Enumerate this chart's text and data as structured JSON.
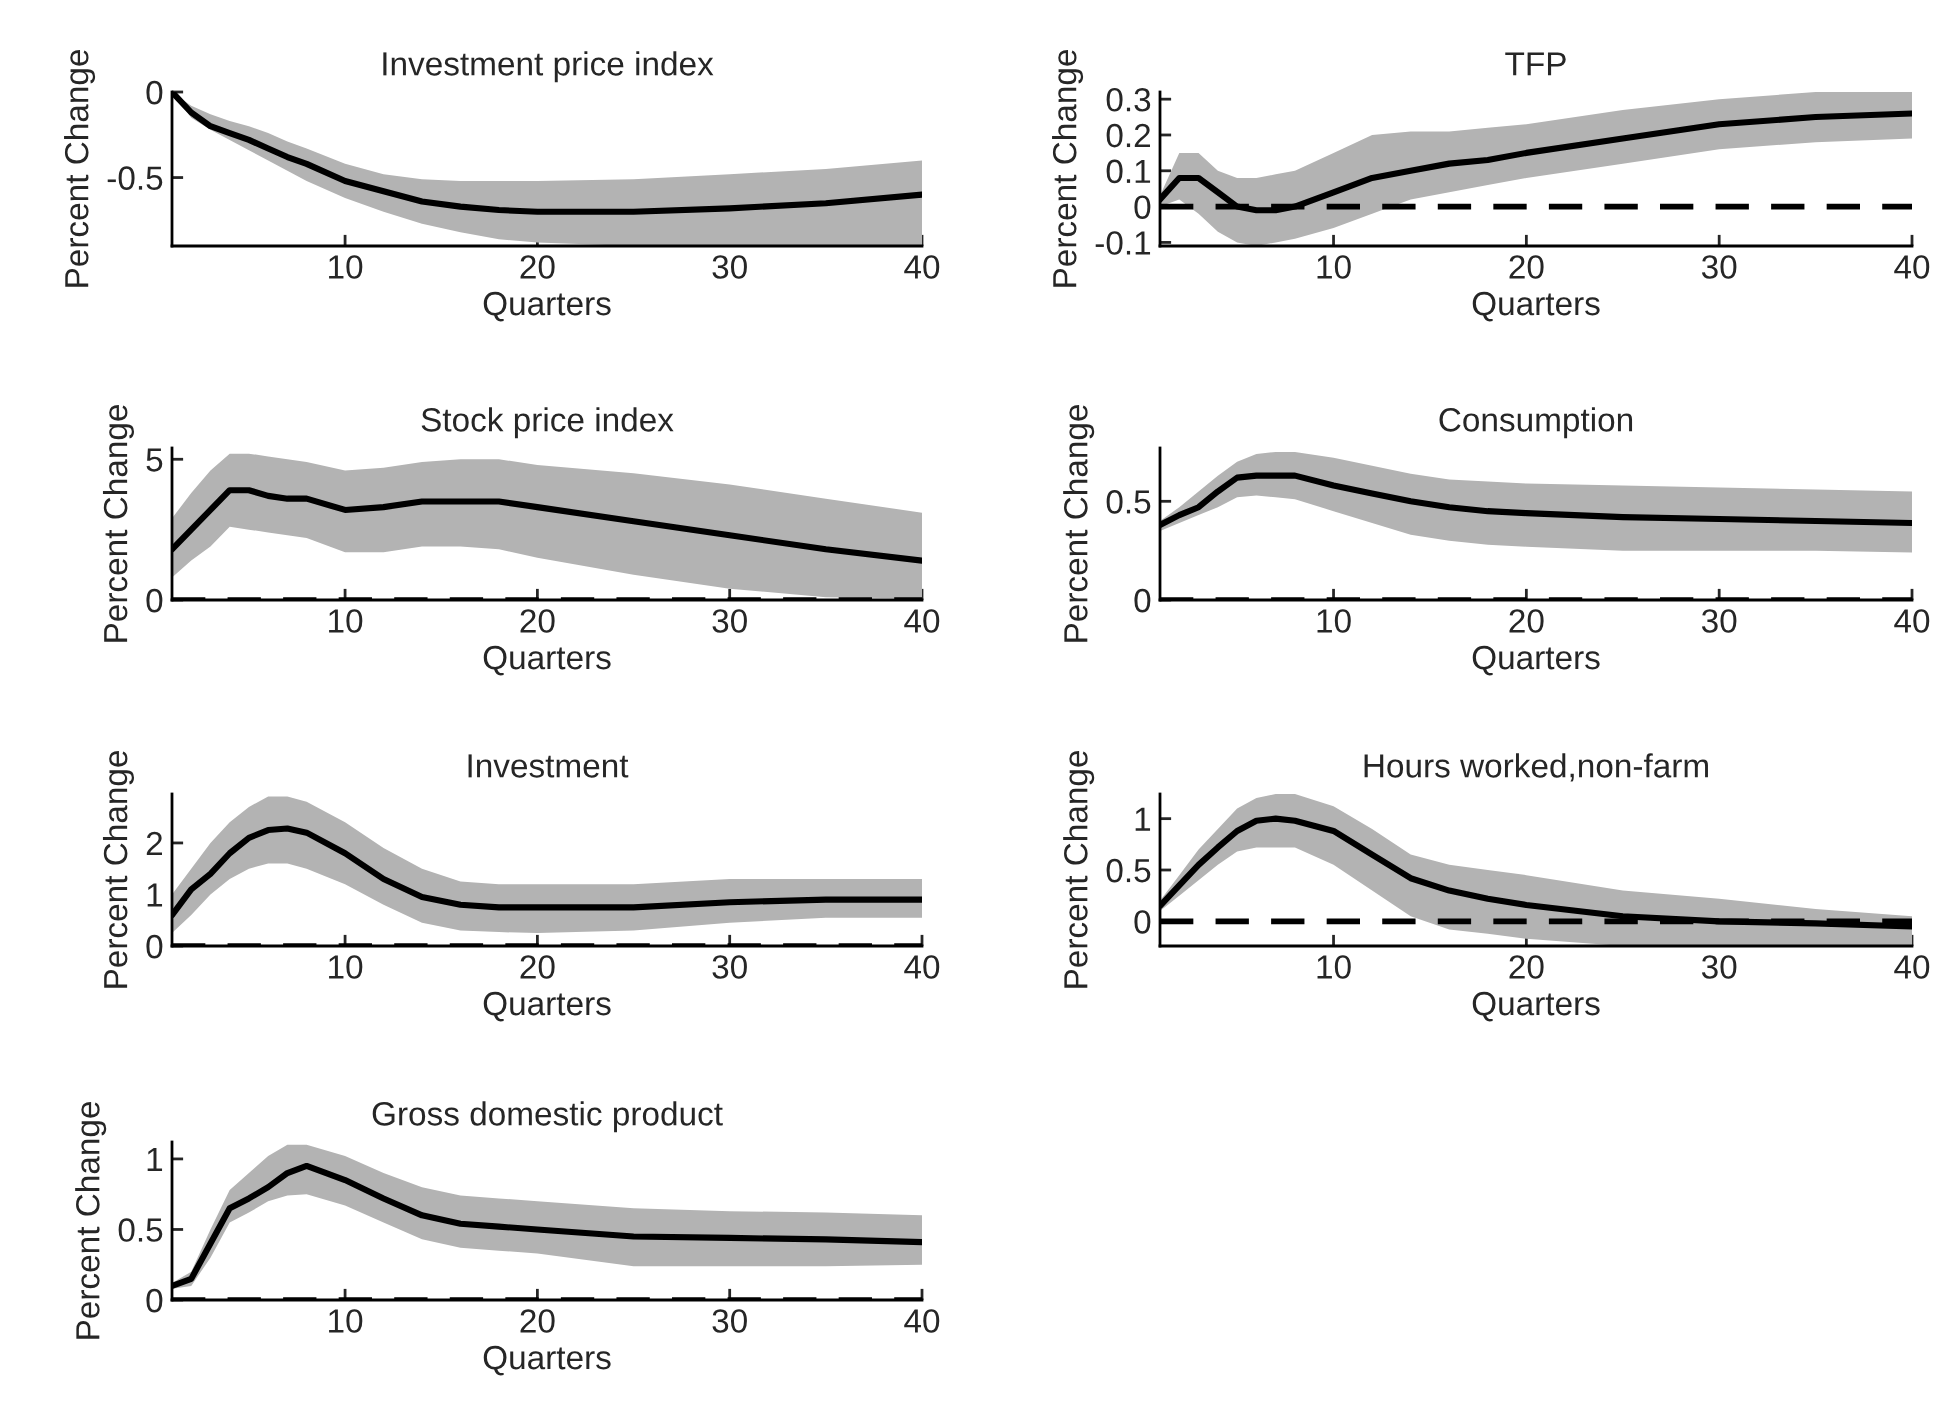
{
  "chart_data": [
    {
      "type": "line",
      "title": "Investment price index",
      "xlabel": "Quarters",
      "ylabel": "Percent Change",
      "xlim": [
        1,
        40
      ],
      "xticks": [
        10,
        20,
        30,
        40
      ],
      "ylim": [
        -0.9,
        0
      ],
      "yticks": [
        -0.5,
        0
      ],
      "series": [
        {
          "color": "#000000",
          "x": [
            1,
            2,
            3,
            4,
            5,
            6,
            7,
            8,
            10,
            12,
            14,
            16,
            18,
            20,
            25,
            30,
            35,
            40
          ],
          "values": [
            0,
            -0.12,
            -0.2,
            -0.24,
            -0.28,
            -0.33,
            -0.38,
            -0.42,
            -0.52,
            -0.58,
            -0.64,
            -0.67,
            -0.69,
            -0.7,
            -0.7,
            -0.68,
            -0.65,
            -0.6
          ],
          "upper": [
            0,
            -0.08,
            -0.13,
            -0.17,
            -0.2,
            -0.24,
            -0.29,
            -0.33,
            -0.42,
            -0.48,
            -0.51,
            -0.52,
            -0.52,
            -0.52,
            -0.51,
            -0.48,
            -0.45,
            -0.4
          ],
          "lower": [
            0,
            -0.15,
            -0.22,
            -0.28,
            -0.34,
            -0.4,
            -0.46,
            -0.52,
            -0.62,
            -0.7,
            -0.77,
            -0.82,
            -0.86,
            -0.88,
            -0.9,
            -0.9,
            -0.9,
            -0.9
          ]
        }
      ]
    },
    {
      "type": "line",
      "title": "TFP",
      "xlabel": "Quarters",
      "ylabel": "Percent Change",
      "xlim": [
        1,
        40
      ],
      "xticks": [
        10,
        20,
        30,
        40
      ],
      "ylim": [
        -0.11,
        0.32
      ],
      "yticks": [
        -0.1,
        0,
        0.1,
        0.2,
        0.3
      ],
      "ref_lines": [
        {
          "axis": "y",
          "value": 0,
          "color": "#000000",
          "line_style": "dashed"
        }
      ],
      "series": [
        {
          "color": "#000000",
          "x": [
            1,
            2,
            3,
            4,
            5,
            6,
            7,
            8,
            10,
            12,
            14,
            16,
            18,
            20,
            25,
            30,
            35,
            40
          ],
          "values": [
            0.02,
            0.08,
            0.08,
            0.04,
            0.0,
            -0.01,
            -0.01,
            0.0,
            0.04,
            0.08,
            0.1,
            0.12,
            0.13,
            0.15,
            0.19,
            0.23,
            0.25,
            0.26
          ],
          "upper": [
            0.03,
            0.15,
            0.15,
            0.1,
            0.08,
            0.08,
            0.09,
            0.1,
            0.15,
            0.2,
            0.21,
            0.21,
            0.22,
            0.23,
            0.27,
            0.3,
            0.32,
            0.32
          ],
          "lower": [
            0.0,
            0.02,
            -0.02,
            -0.07,
            -0.1,
            -0.11,
            -0.1,
            -0.09,
            -0.06,
            -0.02,
            0.02,
            0.04,
            0.06,
            0.08,
            0.12,
            0.16,
            0.18,
            0.19
          ]
        }
      ]
    },
    {
      "type": "line",
      "title": "Stock price index",
      "xlabel": "Quarters",
      "ylabel": "Percent Change",
      "xlim": [
        1,
        40
      ],
      "xticks": [
        10,
        20,
        30,
        40
      ],
      "ylim": [
        0,
        5.4
      ],
      "yticks": [
        0,
        5
      ],
      "ref_lines": [
        {
          "axis": "y",
          "value": 0,
          "color": "#000000",
          "line_style": "dashed"
        }
      ],
      "series": [
        {
          "color": "#000000",
          "x": [
            1,
            2,
            3,
            4,
            5,
            6,
            7,
            8,
            10,
            12,
            14,
            16,
            18,
            20,
            25,
            30,
            35,
            40
          ],
          "values": [
            1.8,
            2.5,
            3.2,
            3.9,
            3.9,
            3.7,
            3.6,
            3.6,
            3.2,
            3.3,
            3.5,
            3.5,
            3.5,
            3.3,
            2.8,
            2.3,
            1.8,
            1.4
          ],
          "upper": [
            2.9,
            3.8,
            4.6,
            5.2,
            5.2,
            5.1,
            5.0,
            4.9,
            4.6,
            4.7,
            4.9,
            5.0,
            5.0,
            4.8,
            4.5,
            4.1,
            3.6,
            3.1
          ],
          "lower": [
            0.8,
            1.4,
            1.9,
            2.6,
            2.5,
            2.4,
            2.3,
            2.2,
            1.7,
            1.7,
            1.9,
            1.9,
            1.8,
            1.5,
            0.9,
            0.4,
            0.1,
            0.05
          ]
        }
      ]
    },
    {
      "type": "line",
      "title": "Consumption",
      "xlabel": "Quarters",
      "ylabel": "Percent Change",
      "xlim": [
        1,
        40
      ],
      "xticks": [
        10,
        20,
        30,
        40
      ],
      "ylim": [
        0,
        0.77
      ],
      "yticks": [
        0,
        0.5
      ],
      "ref_lines": [
        {
          "axis": "y",
          "value": 0,
          "color": "#000000",
          "line_style": "dashed"
        }
      ],
      "series": [
        {
          "color": "#000000",
          "x": [
            1,
            2,
            3,
            4,
            5,
            6,
            7,
            8,
            10,
            12,
            14,
            16,
            18,
            20,
            25,
            30,
            35,
            40
          ],
          "values": [
            0.38,
            0.43,
            0.47,
            0.55,
            0.62,
            0.63,
            0.63,
            0.63,
            0.58,
            0.54,
            0.5,
            0.47,
            0.45,
            0.44,
            0.42,
            0.41,
            0.4,
            0.39
          ],
          "upper": [
            0.4,
            0.47,
            0.55,
            0.63,
            0.7,
            0.74,
            0.75,
            0.75,
            0.72,
            0.68,
            0.64,
            0.61,
            0.6,
            0.59,
            0.58,
            0.57,
            0.56,
            0.55
          ],
          "lower": [
            0.35,
            0.39,
            0.43,
            0.47,
            0.52,
            0.53,
            0.52,
            0.51,
            0.45,
            0.39,
            0.33,
            0.3,
            0.28,
            0.27,
            0.25,
            0.25,
            0.25,
            0.24
          ]
        }
      ]
    },
    {
      "type": "line",
      "title": "Investment",
      "xlabel": "Quarters",
      "ylabel": "Percent Change",
      "xlim": [
        1,
        40
      ],
      "xticks": [
        10,
        20,
        30,
        40
      ],
      "ylim": [
        0,
        2.95
      ],
      "yticks": [
        0,
        1,
        2
      ],
      "ref_lines": [
        {
          "axis": "y",
          "value": 0,
          "color": "#000000",
          "line_style": "dashed"
        }
      ],
      "series": [
        {
          "color": "#000000",
          "x": [
            1,
            2,
            3,
            4,
            5,
            6,
            7,
            8,
            10,
            12,
            14,
            16,
            18,
            20,
            25,
            30,
            35,
            40
          ],
          "values": [
            0.6,
            1.1,
            1.4,
            1.8,
            2.1,
            2.25,
            2.28,
            2.2,
            1.8,
            1.3,
            0.95,
            0.8,
            0.75,
            0.75,
            0.75,
            0.85,
            0.9,
            0.9
          ],
          "upper": [
            1.0,
            1.5,
            2.0,
            2.4,
            2.7,
            2.9,
            2.9,
            2.8,
            2.4,
            1.9,
            1.5,
            1.25,
            1.2,
            1.2,
            1.2,
            1.3,
            1.3,
            1.3
          ],
          "lower": [
            0.25,
            0.6,
            1.0,
            1.3,
            1.5,
            1.6,
            1.6,
            1.5,
            1.2,
            0.8,
            0.45,
            0.3,
            0.27,
            0.25,
            0.3,
            0.45,
            0.55,
            0.55
          ]
        }
      ]
    },
    {
      "type": "line",
      "title": "Hours worked,non-farm",
      "xlabel": "Quarters",
      "ylabel": "Percent Change",
      "xlim": [
        1,
        40
      ],
      "xticks": [
        10,
        20,
        30,
        40
      ],
      "ylim": [
        -0.24,
        1.24
      ],
      "yticks": [
        0,
        0.5,
        1
      ],
      "ref_lines": [
        {
          "axis": "y",
          "value": 0,
          "color": "#000000",
          "line_style": "dashed"
        }
      ],
      "series": [
        {
          "color": "#000000",
          "x": [
            1,
            2,
            3,
            4,
            5,
            6,
            7,
            8,
            10,
            12,
            14,
            16,
            18,
            20,
            25,
            30,
            35,
            40
          ],
          "values": [
            0.15,
            0.35,
            0.55,
            0.72,
            0.88,
            0.98,
            1.0,
            0.98,
            0.88,
            0.65,
            0.42,
            0.3,
            0.22,
            0.16,
            0.05,
            0.0,
            -0.02,
            -0.05
          ],
          "upper": [
            0.2,
            0.45,
            0.7,
            0.9,
            1.1,
            1.2,
            1.24,
            1.24,
            1.12,
            0.9,
            0.65,
            0.55,
            0.5,
            0.45,
            0.3,
            0.22,
            0.12,
            0.05
          ],
          "lower": [
            0.1,
            0.25,
            0.4,
            0.55,
            0.68,
            0.72,
            0.72,
            0.72,
            0.55,
            0.3,
            0.05,
            -0.08,
            -0.12,
            -0.17,
            -0.24,
            -0.24,
            -0.24,
            -0.24
          ]
        }
      ]
    },
    {
      "type": "line",
      "title": "Gross domestic product",
      "xlabel": "Quarters",
      "ylabel": "Percent Change",
      "xlim": [
        1,
        40
      ],
      "xticks": [
        10,
        20,
        30,
        40
      ],
      "ylim": [
        0,
        1.12
      ],
      "yticks": [
        0,
        0.5,
        1
      ],
      "ref_lines": [
        {
          "axis": "y",
          "value": 0,
          "color": "#000000",
          "line_style": "dashed"
        }
      ],
      "series": [
        {
          "color": "#000000",
          "x": [
            1,
            2,
            3,
            4,
            5,
            6,
            7,
            8,
            10,
            12,
            14,
            16,
            18,
            20,
            25,
            30,
            35,
            40
          ],
          "values": [
            0.1,
            0.15,
            0.4,
            0.65,
            0.72,
            0.8,
            0.9,
            0.95,
            0.85,
            0.72,
            0.6,
            0.54,
            0.52,
            0.5,
            0.45,
            0.44,
            0.43,
            0.41
          ],
          "upper": [
            0.12,
            0.2,
            0.5,
            0.78,
            0.9,
            1.02,
            1.1,
            1.1,
            1.02,
            0.9,
            0.8,
            0.74,
            0.72,
            0.7,
            0.65,
            0.63,
            0.62,
            0.6
          ],
          "lower": [
            0.08,
            0.1,
            0.3,
            0.55,
            0.62,
            0.7,
            0.74,
            0.75,
            0.67,
            0.55,
            0.43,
            0.37,
            0.35,
            0.33,
            0.24,
            0.24,
            0.24,
            0.25
          ]
        }
      ]
    }
  ]
}
